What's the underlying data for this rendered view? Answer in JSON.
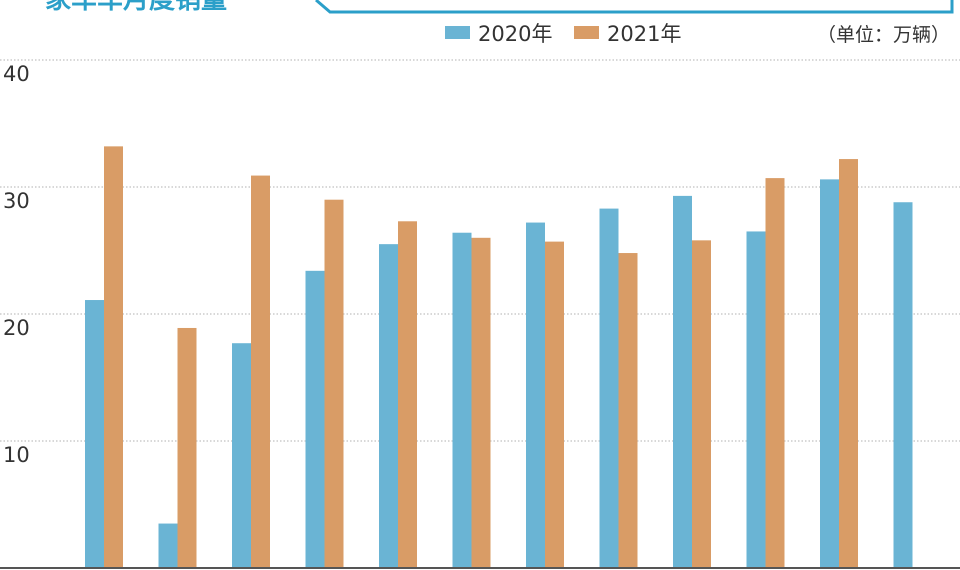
{
  "title": "家车车月度销量",
  "unit_label": "（单位：万辆）",
  "colors": {
    "series_2020": "#6ab4d4",
    "series_2021": "#d99c66",
    "accent": "#2b9fc9",
    "grid": "#b0b0b0",
    "axis": "#555555"
  },
  "chart_data": {
    "type": "bar",
    "title": "家车车月度销量",
    "unit": "（单位：万辆）",
    "ylim": [
      0,
      40
    ],
    "yticks": [
      "10",
      "20",
      "30",
      "40"
    ],
    "grid": true,
    "legend_position": "top",
    "series": [
      {
        "name": "2020年",
        "values": [
          21.1,
          3.5,
          17.7,
          23.4,
          25.5,
          26.4,
          27.2,
          28.3,
          29.3,
          26.5,
          30.6,
          28.8
        ]
      },
      {
        "name": "2021年",
        "values": [
          33.2,
          18.9,
          30.9,
          29.0,
          27.3,
          26.0,
          25.7,
          24.8,
          25.8,
          30.7,
          32.2,
          null
        ]
      }
    ]
  }
}
